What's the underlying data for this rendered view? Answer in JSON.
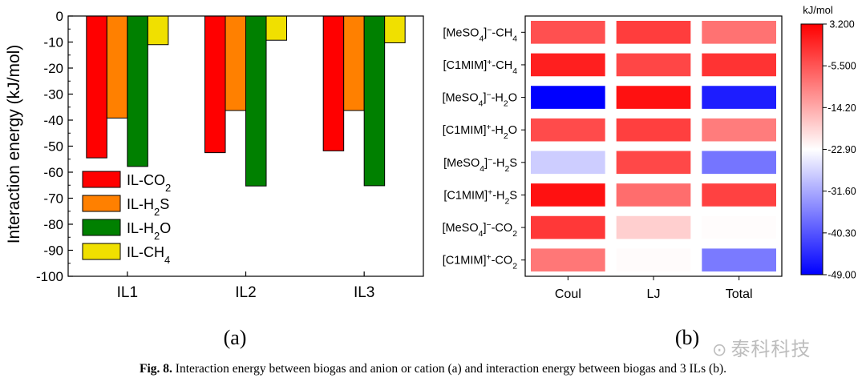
{
  "chart_data": [
    {
      "type": "bar",
      "panel": "(a)",
      "ylabel": "Interaction energy (kJ/mol)",
      "ylim": [
        -100,
        0
      ],
      "yticks": [
        "0",
        "-10",
        "-20",
        "-30",
        "-40",
        "-50",
        "-60",
        "-70",
        "-80",
        "-90",
        "-100"
      ],
      "categories": [
        "IL1",
        "IL2",
        "IL3"
      ],
      "series": [
        {
          "name": "IL-CO2",
          "color": "#ff0000",
          "values": [
            -54.5,
            -52.5,
            -51.8
          ]
        },
        {
          "name": "IL-H2S",
          "color": "#ff8000",
          "values": [
            -39.2,
            -36.3,
            -36.3
          ]
        },
        {
          "name": "IL-H2O",
          "color": "#008000",
          "values": [
            -57.8,
            -65.3,
            -65.2
          ]
        },
        {
          "name": "IL-CH4",
          "color": "#f0e000",
          "values": [
            -11.0,
            -9.3,
            -10.3
          ]
        }
      ],
      "legend_entries": [
        {
          "main": "IL-CO",
          "sub": "2"
        },
        {
          "main": "IL-H",
          "sub": "2",
          "tail": "S"
        },
        {
          "main": "IL-H",
          "sub": "2",
          "tail": "O"
        },
        {
          "main": "IL-CH",
          "sub": "4"
        }
      ],
      "legend": "bottom-left",
      "grid": false
    },
    {
      "type": "heatmap",
      "panel": "(b)",
      "x_categories": [
        "Coul",
        "LJ",
        "Total"
      ],
      "y_categories": [
        "[MeSO4]−-CH4",
        "[C1MIM]+-CH4",
        "[MeSO4]−-H2O",
        "[C1MIM]+-H2O",
        "[MeSO4]−-H2S",
        "[C1MIM]+-H2S",
        "[MeSO4]−-CO2",
        "[C1MIM]+-CO2"
      ],
      "values": [
        [
          -5.0,
          -3.0,
          -8.5
        ],
        [
          0.0,
          -4.0,
          -2.0
        ],
        [
          -49.0,
          1.5,
          -46.0
        ],
        [
          -4.5,
          -3.2,
          -9.5
        ],
        [
          -28.0,
          -4.2,
          -37.0
        ],
        [
          1.5,
          -8.0,
          -3.5
        ],
        [
          -2.5,
          -18.0,
          -22.6
        ],
        [
          -9.0,
          -22.5,
          -36.5
        ]
      ],
      "colorbar": {
        "label": "kJ/mol",
        "ticks": [
          "3.200",
          "-5.500",
          "-14.20",
          "-22.90",
          "-31.60",
          "-40.30",
          "-49.00"
        ],
        "range": [
          -49.0,
          3.2
        ],
        "colors": [
          "#0000ff",
          "#ffffff",
          "#ff0000"
        ]
      },
      "grid": false
    }
  ],
  "caption": {
    "label": "Fig. 8.",
    "text": "Interaction energy between biogas and anion or cation (a) and interaction energy between biogas and 3 ILs (b)."
  },
  "watermark": {
    "icon": "wechat-icon",
    "text": "泰科科技"
  }
}
